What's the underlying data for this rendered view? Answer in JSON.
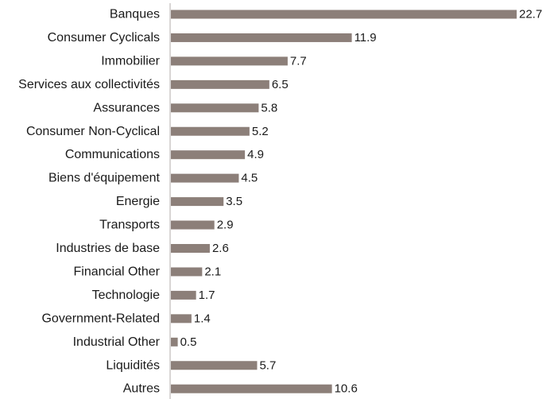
{
  "chart_data": {
    "type": "bar",
    "orientation": "horizontal",
    "title": "",
    "xlabel": "",
    "ylabel": "",
    "grid": false,
    "xlim": [
      0,
      22.7
    ],
    "bar_color": "#8c7f79",
    "axis_color": "#b3aeab",
    "categories": [
      "Banques",
      "Consumer Cyclicals",
      "Immobilier",
      "Services aux collectivités",
      "Assurances",
      "Consumer Non-Cyclical",
      "Communications",
      "Biens d'équipement",
      "Energie",
      "Transports",
      "Industries de base",
      "Financial Other",
      "Technologie",
      "Government-Related",
      "Industrial Other",
      "Liquidités",
      "Autres"
    ],
    "values": [
      22.7,
      11.9,
      7.7,
      6.5,
      5.8,
      5.2,
      4.9,
      4.5,
      3.5,
      2.9,
      2.6,
      2.1,
      1.7,
      1.4,
      0.5,
      5.7,
      10.6
    ],
    "value_labels": [
      "22.7",
      "11.9",
      "7.7",
      "6.5",
      "5.8",
      "5.2",
      "4.9",
      "4.5",
      "3.5",
      "2.9",
      "2.6",
      "2.1",
      "1.7",
      "1.4",
      "0.5",
      "5.7",
      "10.6"
    ]
  }
}
